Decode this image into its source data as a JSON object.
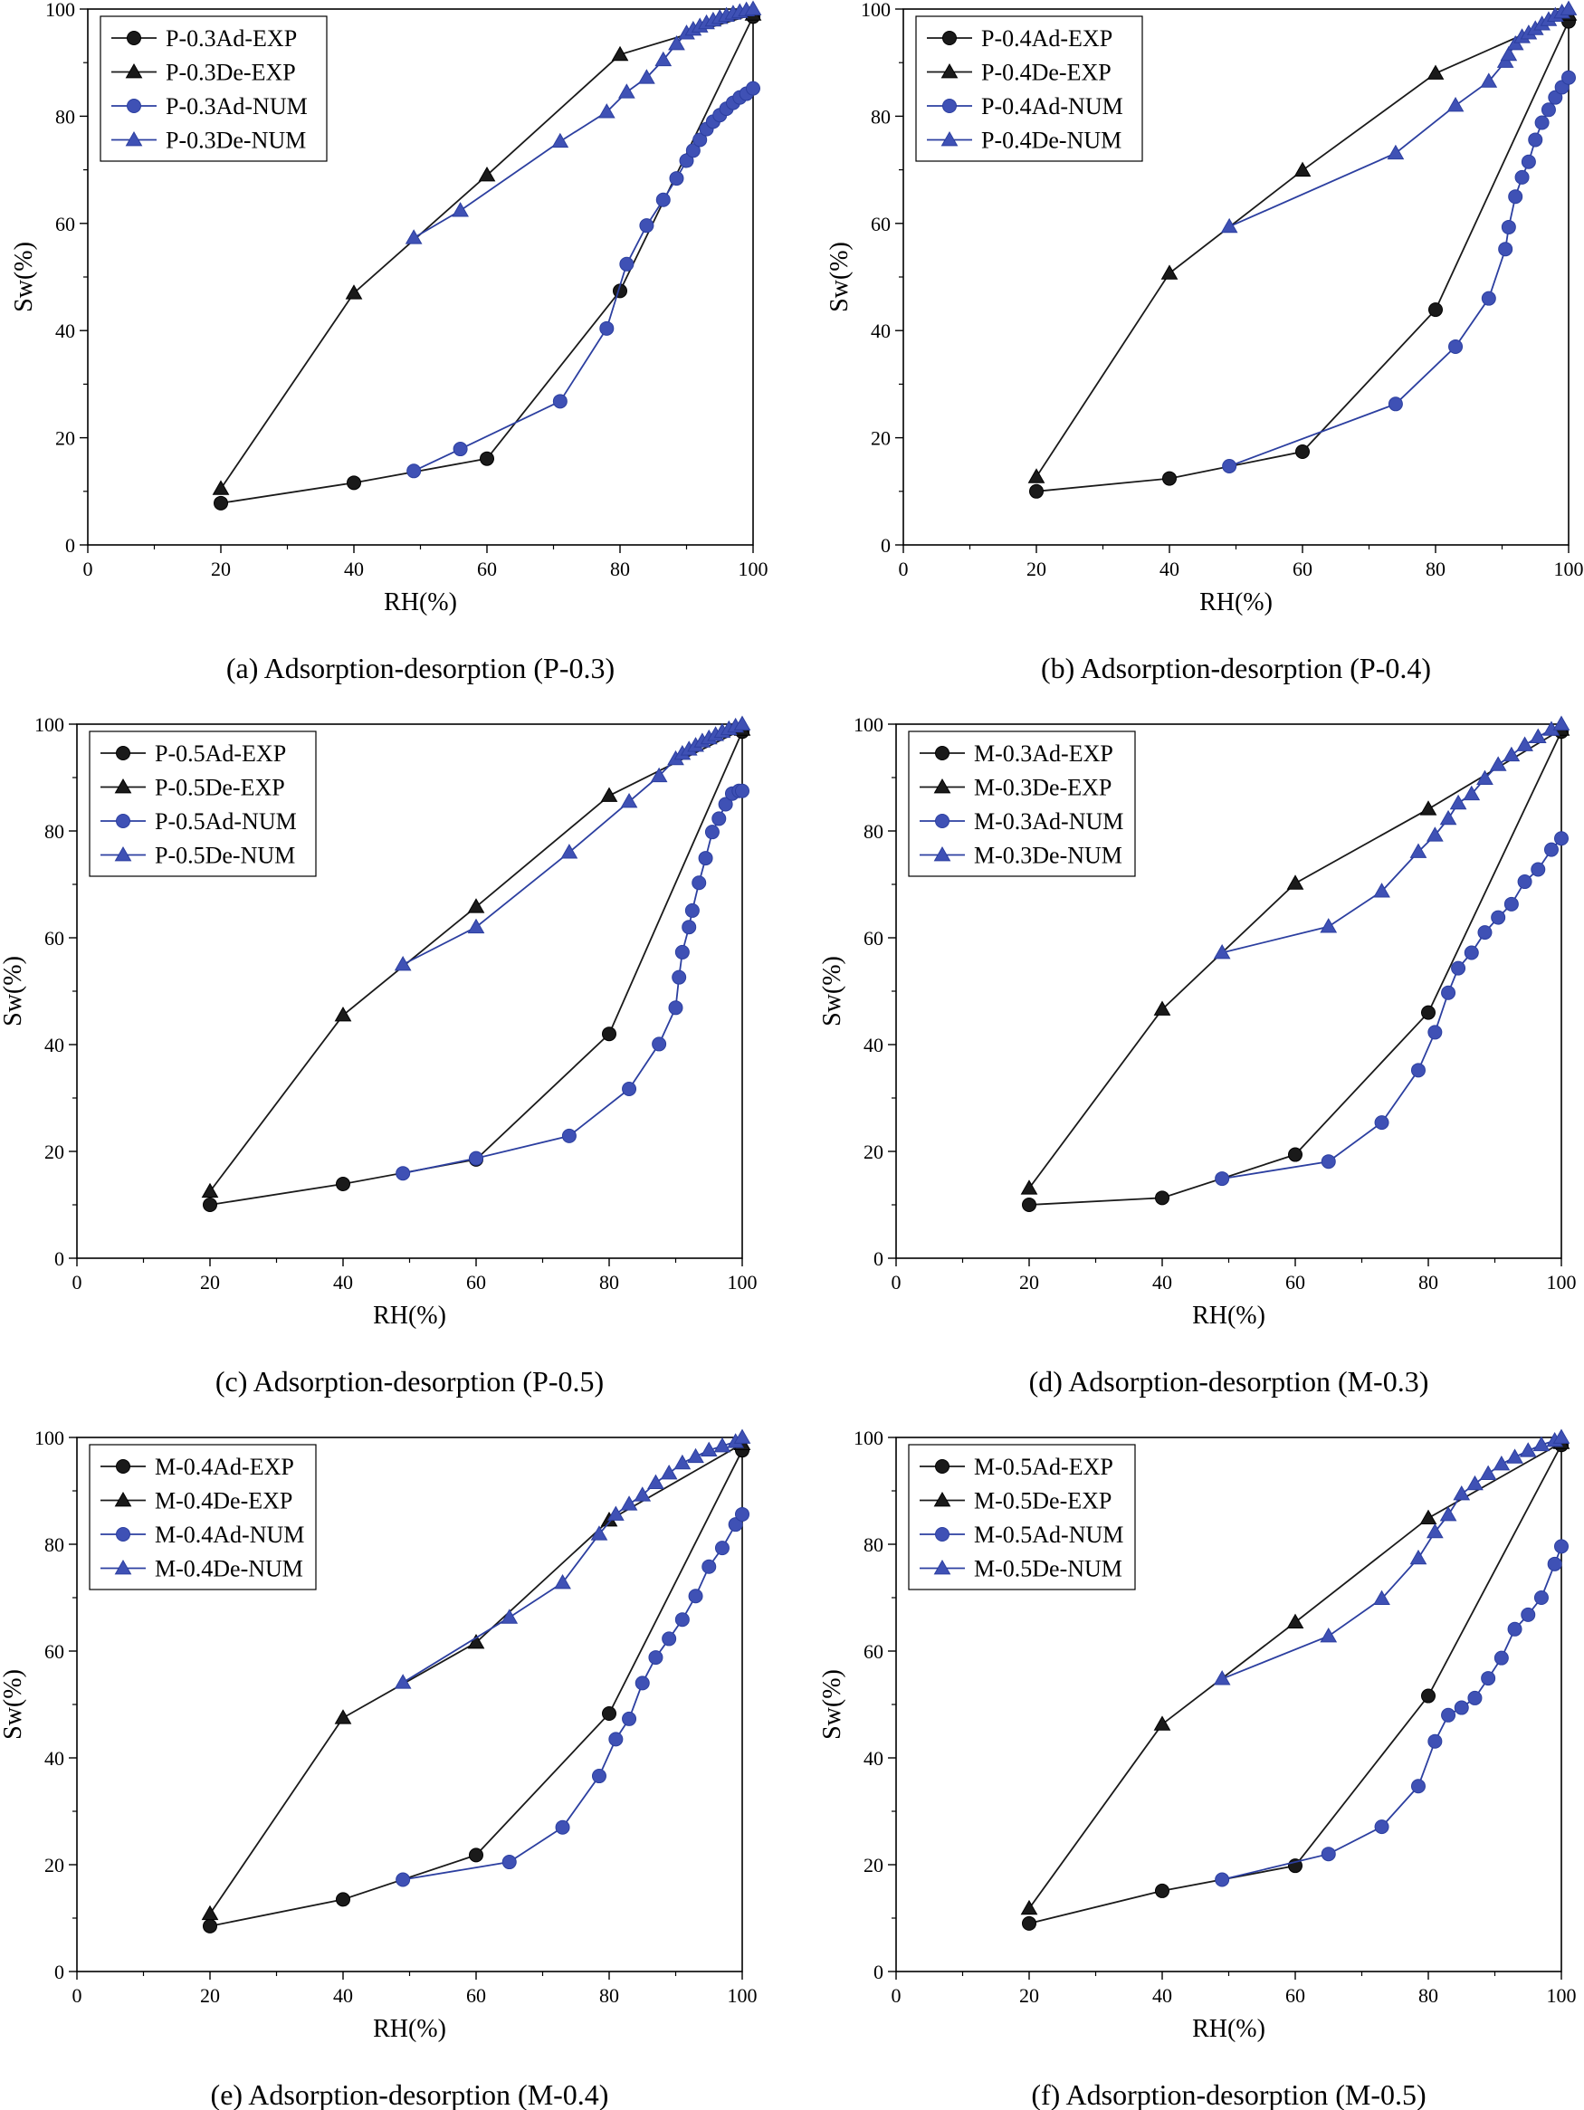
{
  "colors": {
    "experimental": "#1a1a1a",
    "numerical": "#3f51b5",
    "numerical_line": "#2c3fa0",
    "axis": "#000000",
    "background": "#ffffff"
  },
  "chart_data": [
    {
      "type": "line",
      "caption": "(a) Adsorption-desorption (P-0.3)",
      "xlabel": "RH(%)",
      "ylabel": "Sw(%)",
      "xlim": [
        0,
        100
      ],
      "ylim": [
        0,
        100
      ],
      "xticks": [
        0,
        20,
        40,
        60,
        80,
        100
      ],
      "yticks": [
        0,
        20,
        40,
        60,
        80,
        100
      ],
      "legend_position": "top-left",
      "series": [
        {
          "name": "P-0.3Ad-EXP",
          "marker": "circle",
          "style": "exp",
          "x": [
            20,
            40,
            60,
            80,
            100
          ],
          "y": [
            7.8,
            11.6,
            16.1,
            47.4,
            98.6
          ]
        },
        {
          "name": "P-0.3De-EXP",
          "marker": "triangle",
          "style": "exp",
          "x": [
            20,
            40,
            60,
            80,
            100
          ],
          "y": [
            10.5,
            47.0,
            69.0,
            91.5,
            99.0
          ]
        },
        {
          "name": "P-0.3Ad-NUM",
          "marker": "circle",
          "style": "num",
          "x": [
            49,
            56,
            71,
            78,
            81,
            84,
            86.5,
            88.5,
            90,
            91,
            92,
            93,
            94,
            95,
            96,
            97,
            98,
            99,
            100
          ],
          "y": [
            13.8,
            17.9,
            26.8,
            40.4,
            52.4,
            59.6,
            64.4,
            68.4,
            71.7,
            73.6,
            75.6,
            77.6,
            79.0,
            80.2,
            81.4,
            82.5,
            83.5,
            84.2,
            85.2
          ]
        },
        {
          "name": "P-0.3De-NUM",
          "marker": "triangle",
          "style": "num",
          "x": [
            49,
            56,
            71,
            78,
            81,
            84,
            86.5,
            88.5,
            90,
            91,
            92,
            93,
            94,
            95,
            96,
            97,
            98,
            99,
            100
          ],
          "y": [
            57.3,
            62.4,
            75.3,
            80.8,
            84.5,
            87.2,
            90.5,
            93.5,
            95.5,
            96.2,
            96.8,
            97.4,
            97.9,
            98.4,
            98.8,
            99.2,
            99.5,
            99.8,
            100
          ]
        }
      ]
    },
    {
      "type": "line",
      "caption": "(b) Adsorption-desorption (P-0.4)",
      "xlabel": "RH(%)",
      "ylabel": "Sw(%)",
      "xlim": [
        0,
        100
      ],
      "ylim": [
        0,
        100
      ],
      "xticks": [
        0,
        20,
        40,
        60,
        80,
        100
      ],
      "yticks": [
        0,
        20,
        40,
        60,
        80,
        100
      ],
      "legend_position": "top-left",
      "series": [
        {
          "name": "P-0.4Ad-EXP",
          "marker": "circle",
          "style": "exp",
          "x": [
            20,
            40,
            60,
            80,
            100
          ],
          "y": [
            10.0,
            12.4,
            17.4,
            43.9,
            97.7
          ]
        },
        {
          "name": "P-0.4De-EXP",
          "marker": "triangle",
          "style": "exp",
          "x": [
            20,
            40,
            60,
            80,
            100
          ],
          "y": [
            12.7,
            50.7,
            69.9,
            88.0,
            99.0
          ]
        },
        {
          "name": "P-0.4Ad-NUM",
          "marker": "circle",
          "style": "num",
          "x": [
            49,
            74,
            83,
            88,
            90.5,
            91,
            92,
            93,
            94,
            95,
            96,
            97,
            98,
            99,
            100
          ],
          "y": [
            14.7,
            26.3,
            37.0,
            46.0,
            55.2,
            59.3,
            65.0,
            68.6,
            71.5,
            75.6,
            78.8,
            81.2,
            83.5,
            85.4,
            87.2
          ]
        },
        {
          "name": "P-0.4De-NUM",
          "marker": "triangle",
          "style": "num",
          "x": [
            49,
            74,
            83,
            88,
            90.5,
            91,
            92,
            93,
            94,
            95,
            96,
            97,
            98,
            99,
            100
          ],
          "y": [
            59.4,
            73.1,
            82.0,
            86.5,
            90.2,
            91.5,
            93.5,
            94.8,
            95.5,
            96.3,
            97.2,
            98.0,
            98.8,
            99.4,
            100
          ]
        }
      ]
    },
    {
      "type": "line",
      "caption": "(c) Adsorption-desorption (P-0.5)",
      "xlabel": "RH(%)",
      "ylabel": "Sw(%)",
      "xlim": [
        0,
        100
      ],
      "ylim": [
        0,
        100
      ],
      "xticks": [
        0,
        20,
        40,
        60,
        80,
        100
      ],
      "yticks": [
        0,
        20,
        40,
        60,
        80,
        100
      ],
      "legend_position": "top-left",
      "series": [
        {
          "name": "P-0.5Ad-EXP",
          "marker": "circle",
          "style": "exp",
          "x": [
            20,
            40,
            60,
            80,
            100
          ],
          "y": [
            10.0,
            13.9,
            18.5,
            42.0,
            98.6
          ]
        },
        {
          "name": "P-0.5De-EXP",
          "marker": "triangle",
          "style": "exp",
          "x": [
            20,
            40,
            60,
            80,
            100
          ],
          "y": [
            12.5,
            45.5,
            65.8,
            86.6,
            99.0
          ]
        },
        {
          "name": "P-0.5Ad-NUM",
          "marker": "circle",
          "style": "num",
          "x": [
            49,
            60,
            74,
            83,
            87.5,
            90,
            90.5,
            91,
            92,
            92.5,
            93.5,
            94.5,
            95.5,
            96.5,
            97.5,
            98.5,
            99.5,
            100
          ],
          "y": [
            15.9,
            18.7,
            22.9,
            31.7,
            40.1,
            46.9,
            52.6,
            57.3,
            62.0,
            65.1,
            70.3,
            74.9,
            79.8,
            82.3,
            85.0,
            87.0,
            87.5,
            87.5
          ]
        },
        {
          "name": "P-0.5De-NUM",
          "marker": "triangle",
          "style": "num",
          "x": [
            49,
            60,
            74,
            83,
            87.5,
            90,
            91,
            92,
            93,
            94,
            95,
            96,
            97,
            98,
            99,
            100
          ],
          "y": [
            55.0,
            62.0,
            76.0,
            85.5,
            90.3,
            93.5,
            94.5,
            95.3,
            96.0,
            96.8,
            97.4,
            98.0,
            98.6,
            99.1,
            99.6,
            100
          ]
        }
      ]
    },
    {
      "type": "line",
      "caption": "(d) Adsorption-desorption (M-0.3)",
      "xlabel": "RH(%)",
      "ylabel": "Sw(%)",
      "xlim": [
        0,
        100
      ],
      "ylim": [
        0,
        100
      ],
      "xticks": [
        0,
        20,
        40,
        60,
        80,
        100
      ],
      "yticks": [
        0,
        20,
        40,
        60,
        80,
        100
      ],
      "legend_position": "top-left",
      "series": [
        {
          "name": "M-0.3Ad-EXP",
          "marker": "circle",
          "style": "exp",
          "x": [
            20,
            40,
            60,
            80,
            100
          ],
          "y": [
            10.0,
            11.3,
            19.4,
            46.0,
            98.6
          ]
        },
        {
          "name": "M-0.3De-EXP",
          "marker": "triangle",
          "style": "exp",
          "x": [
            20,
            40,
            60,
            80,
            100
          ],
          "y": [
            13.1,
            46.6,
            70.2,
            84.1,
            99.0
          ]
        },
        {
          "name": "M-0.3Ad-NUM",
          "marker": "circle",
          "style": "num",
          "x": [
            49,
            65,
            73,
            78.5,
            81,
            83,
            84.5,
            86.5,
            88.5,
            90.5,
            92.5,
            94.5,
            96.5,
            98.5,
            100
          ],
          "y": [
            14.9,
            18.1,
            25.4,
            35.2,
            42.3,
            49.7,
            54.3,
            57.2,
            61.0,
            63.8,
            66.3,
            70.5,
            72.8,
            76.5,
            78.6
          ]
        },
        {
          "name": "M-0.3De-NUM",
          "marker": "triangle",
          "style": "num",
          "x": [
            49,
            65,
            73,
            78.5,
            81,
            83,
            84.5,
            86.5,
            88.5,
            90.5,
            92.5,
            94.5,
            96.5,
            98.5,
            100
          ],
          "y": [
            57.2,
            62.1,
            68.7,
            76.1,
            79.2,
            82.3,
            85.2,
            86.9,
            89.8,
            92.4,
            94.2,
            96.1,
            97.6,
            99.0,
            100
          ]
        }
      ]
    },
    {
      "type": "line",
      "caption": "(e) Adsorption-desorption (M-0.4)",
      "xlabel": "RH(%)",
      "ylabel": "Sw(%)",
      "xlim": [
        0,
        100
      ],
      "ylim": [
        0,
        100
      ],
      "xticks": [
        0,
        20,
        40,
        60,
        80,
        100
      ],
      "yticks": [
        0,
        20,
        40,
        60,
        80,
        100
      ],
      "legend_position": "top-left",
      "series": [
        {
          "name": "M-0.4Ad-EXP",
          "marker": "circle",
          "style": "exp",
          "x": [
            20,
            40,
            60,
            80,
            100
          ],
          "y": [
            8.5,
            13.5,
            21.8,
            48.3,
            97.6
          ]
        },
        {
          "name": "M-0.4De-EXP",
          "marker": "triangle",
          "style": "exp",
          "x": [
            20,
            40,
            60,
            80,
            100
          ],
          "y": [
            10.8,
            47.5,
            61.6,
            84.5,
            98.8
          ]
        },
        {
          "name": "M-0.4Ad-NUM",
          "marker": "circle",
          "style": "num",
          "x": [
            49,
            65,
            73,
            78.5,
            81,
            83,
            85,
            87,
            89,
            91,
            93,
            95,
            97,
            99,
            100
          ],
          "y": [
            17.2,
            20.5,
            27.0,
            36.6,
            43.5,
            47.3,
            54.0,
            58.8,
            62.3,
            65.9,
            70.3,
            75.8,
            79.3,
            83.7,
            85.6
          ]
        },
        {
          "name": "M-0.4De-NUM",
          "marker": "triangle",
          "style": "num",
          "x": [
            49,
            65,
            73,
            78.5,
            81,
            83,
            85,
            87,
            89,
            91,
            93,
            95,
            97,
            99,
            100
          ],
          "y": [
            54.1,
            66.3,
            72.8,
            81.9,
            85.6,
            87.5,
            89.2,
            91.5,
            93.3,
            95.2,
            96.4,
            97.6,
            98.4,
            99.2,
            100
          ]
        }
      ]
    },
    {
      "type": "line",
      "caption": "(f) Adsorption-desorption (M-0.5)",
      "xlabel": "RH(%)",
      "ylabel": "Sw(%)",
      "xlim": [
        0,
        100
      ],
      "ylim": [
        0,
        100
      ],
      "xticks": [
        0,
        20,
        40,
        60,
        80,
        100
      ],
      "yticks": [
        0,
        20,
        40,
        60,
        80,
        100
      ],
      "legend_position": "top-left",
      "series": [
        {
          "name": "M-0.5Ad-EXP",
          "marker": "circle",
          "style": "exp",
          "x": [
            20,
            40,
            60,
            80,
            100
          ],
          "y": [
            9.0,
            15.1,
            19.8,
            51.6,
            98.6
          ]
        },
        {
          "name": "M-0.5De-EXP",
          "marker": "triangle",
          "style": "exp",
          "x": [
            20,
            40,
            60,
            80,
            100
          ],
          "y": [
            11.8,
            46.3,
            65.4,
            84.9,
            99.0
          ]
        },
        {
          "name": "M-0.5Ad-NUM",
          "marker": "circle",
          "style": "num",
          "x": [
            49,
            65,
            73,
            78.5,
            81,
            83,
            85,
            87,
            89,
            91,
            93,
            95,
            97,
            99,
            100
          ],
          "y": [
            17.2,
            22.0,
            27.1,
            34.7,
            43.1,
            48.0,
            49.4,
            51.2,
            54.9,
            58.7,
            64.1,
            66.8,
            70.0,
            76.3,
            79.6
          ]
        },
        {
          "name": "M-0.5De-NUM",
          "marker": "triangle",
          "style": "num",
          "x": [
            49,
            65,
            73,
            78.5,
            81,
            83,
            85,
            87,
            89,
            91,
            93,
            95,
            97,
            99,
            100
          ],
          "y": [
            54.8,
            62.8,
            69.8,
            77.4,
            82.3,
            85.5,
            89.4,
            91.3,
            93.2,
            95.0,
            96.3,
            97.5,
            98.6,
            99.4,
            100
          ]
        }
      ]
    }
  ]
}
